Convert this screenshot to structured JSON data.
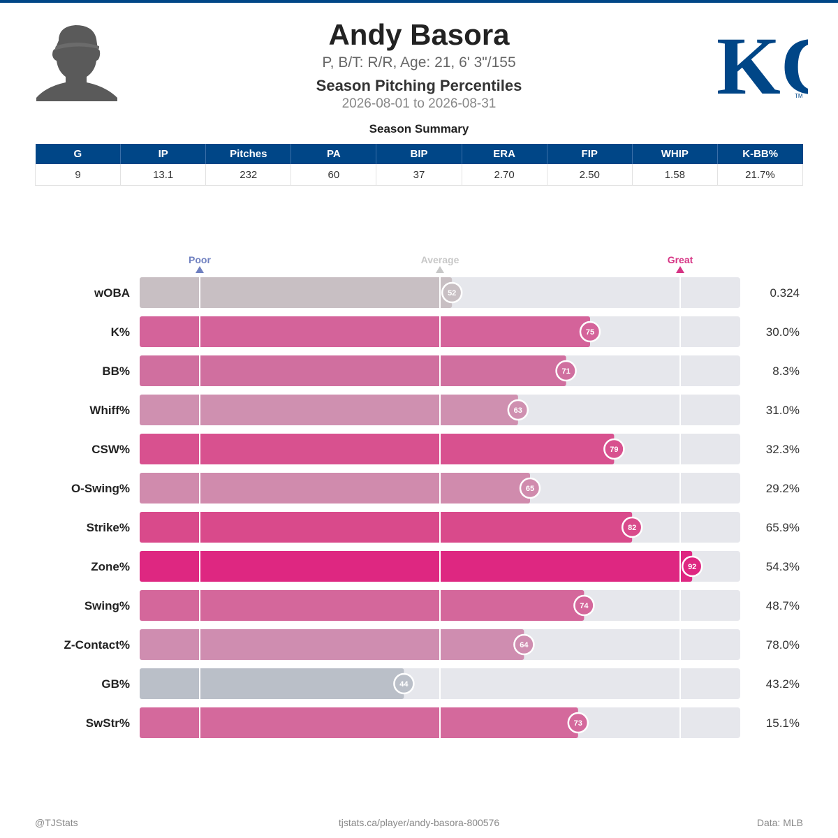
{
  "player": {
    "name": "Andy Basora",
    "info": "P, B/T: R/R, Age: 21, 6' 3\"/155",
    "section_title": "Season Pitching Percentiles",
    "date_range": "2026-08-01 to 2026-08-31"
  },
  "team_logo": {
    "text": "KC",
    "trademark": "TM",
    "color": "#004687"
  },
  "summary": {
    "title": "Season Summary",
    "headers": [
      "G",
      "IP",
      "Pitches",
      "PA",
      "BIP",
      "ERA",
      "FIP",
      "WHIP",
      "K-BB%"
    ],
    "values": [
      "9",
      "13.1",
      "232",
      "60",
      "37",
      "2.70",
      "2.50",
      "1.58",
      "21.7%"
    ]
  },
  "chart_data": {
    "type": "bar",
    "orientation": "horizontal",
    "xlim": [
      0,
      100
    ],
    "markers": [
      {
        "label": "Poor",
        "value": 10,
        "color": "#6f80c0"
      },
      {
        "label": "Average",
        "value": 50,
        "color": "#c8c8c8"
      },
      {
        "label": "Great",
        "value": 90,
        "color": "#d63384"
      }
    ],
    "categories": [
      "wOBA",
      "K%",
      "BB%",
      "Whiff%",
      "CSW%",
      "O-Swing%",
      "Strike%",
      "Zone%",
      "Swing%",
      "Z-Contact%",
      "GB%",
      "SwStr%"
    ],
    "percentiles": [
      52,
      75,
      71,
      63,
      79,
      65,
      82,
      92,
      74,
      64,
      44,
      73
    ],
    "stat_values": [
      "0.324",
      "30.0%",
      "8.3%",
      "31.0%",
      "32.3%",
      "29.2%",
      "65.9%",
      "54.3%",
      "48.7%",
      "78.0%",
      "43.2%",
      "15.1%"
    ],
    "colors": [
      "#c8bfc3",
      "#d4639a",
      "#d06f9f",
      "#cf90b0",
      "#d8518f",
      "#d08bad",
      "#d94a8b",
      "#de2781",
      "#d4679b",
      "#cf8db0",
      "#babfc8",
      "#d4699c"
    ]
  },
  "footer": {
    "left": "@TJStats",
    "center": "tjstats.ca/player/andy-basora-800576",
    "right": "Data: MLB"
  }
}
